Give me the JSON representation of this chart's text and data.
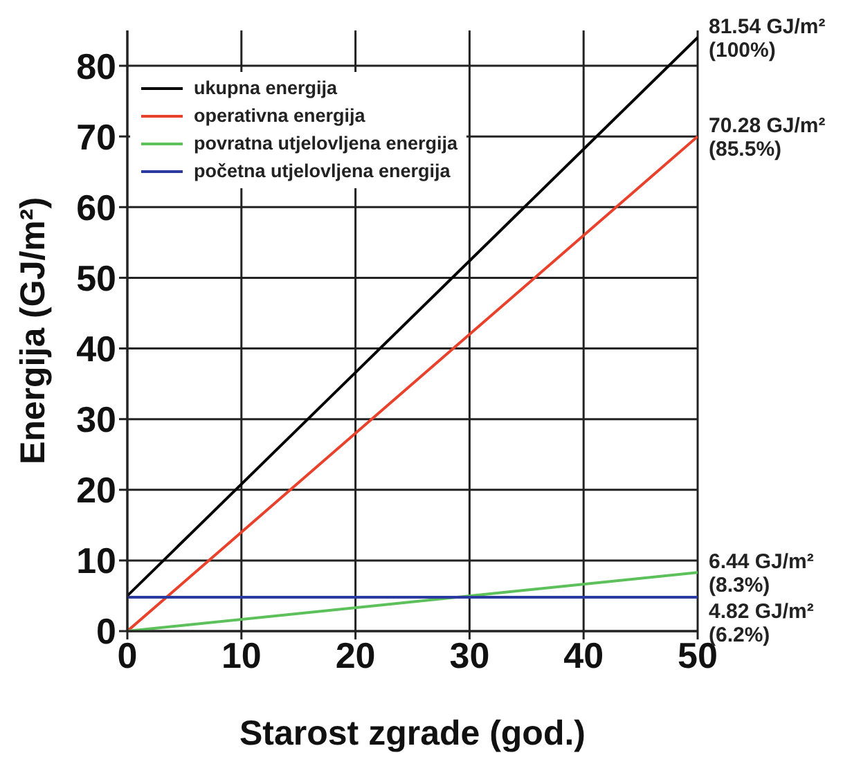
{
  "chart_data": {
    "type": "line",
    "xlabel": "Starost zgrade (god.)",
    "ylabel": "Energija (GJ/m²)",
    "x": [
      0,
      50
    ],
    "series": [
      {
        "name": "ukupna energija",
        "color": "#000000",
        "values": [
          5,
          84
        ]
      },
      {
        "name": "operativna energija",
        "color": "#e8412c",
        "values": [
          0,
          70
        ]
      },
      {
        "name": "povratna utjelovljena energija",
        "color": "#5cc15a",
        "values": [
          0,
          8.3
        ]
      },
      {
        "name": "početna utjelovljena energija",
        "color": "#2a3a9e",
        "values": [
          4.8,
          4.8
        ]
      }
    ],
    "xlim": [
      0,
      50
    ],
    "xticks": [
      0,
      10,
      20,
      30,
      40,
      50
    ],
    "ylim": [
      0,
      85
    ],
    "yticks": [
      0,
      10,
      20,
      30,
      40,
      50,
      60,
      70,
      80
    ],
    "grid": true,
    "legend": "top left",
    "annotations": [
      "81.54 GJ/m²\n(100%)",
      "70.28 GJ/m²\n(85.5%)",
      "6.44 GJ/m²\n(8.3%)",
      "4.82 GJ/m²\n(6.2%)"
    ]
  }
}
